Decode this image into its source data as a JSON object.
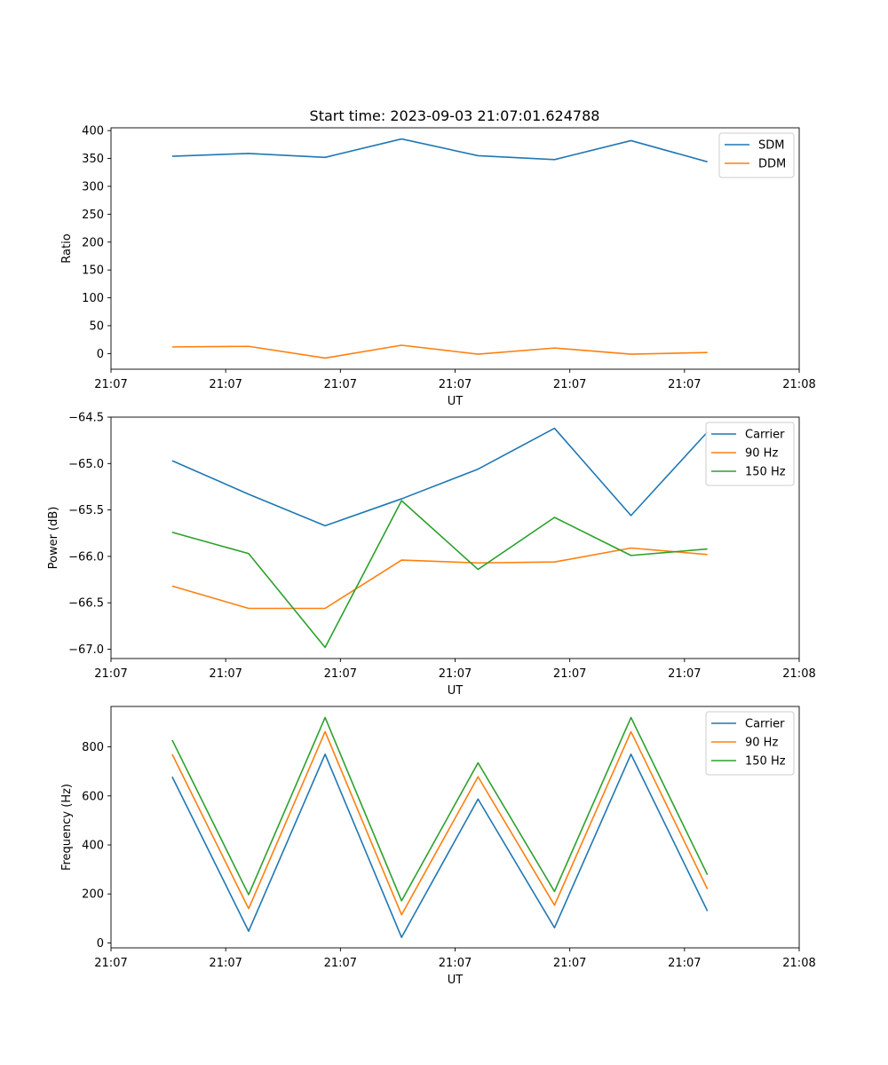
{
  "colors": {
    "blue": "#1f77b4",
    "orange": "#ff7f0e",
    "green": "#2ca02c"
  },
  "chart_data": [
    {
      "type": "line",
      "title": "Start time: 2023-09-03 21:07:01.624788",
      "xlabel": "UT",
      "ylabel": "Ratio",
      "x": [
        1,
        2,
        3,
        4,
        5,
        6,
        7,
        8
      ],
      "xlim": [
        0.2,
        9.2
      ],
      "xticks": [
        0.2,
        1.7,
        3.2,
        4.7,
        6.2,
        7.7,
        9.2
      ],
      "xtick_labels": [
        "21:07",
        "21:07",
        "21:07",
        "21:07",
        "21:07",
        "21:07",
        "21:08"
      ],
      "ylim": [
        -28,
        405
      ],
      "yticks": [
        0,
        50,
        100,
        150,
        200,
        250,
        300,
        350,
        400
      ],
      "legend": "top-right",
      "series": [
        {
          "name": "SDM",
          "color": "#1f77b4",
          "values": [
            354,
            359,
            352,
            385,
            355,
            348,
            382,
            344
          ]
        },
        {
          "name": "DDM",
          "color": "#ff7f0e",
          "values": [
            12,
            13,
            -8,
            15,
            -1,
            10,
            -1,
            2
          ]
        }
      ]
    },
    {
      "type": "line",
      "title": "",
      "xlabel": "UT",
      "ylabel": "Power (dB)",
      "x": [
        1,
        2,
        3,
        4,
        5,
        6,
        7,
        8
      ],
      "xlim": [
        0.2,
        9.2
      ],
      "xticks": [
        0.2,
        1.7,
        3.2,
        4.7,
        6.2,
        7.7,
        9.2
      ],
      "xtick_labels": [
        "21:07",
        "21:07",
        "21:07",
        "21:07",
        "21:07",
        "21:07",
        "21:08"
      ],
      "ylim": [
        -67.1,
        -64.5
      ],
      "yticks": [
        -67.0,
        -66.5,
        -66.0,
        -65.5,
        -65.0,
        -64.5
      ],
      "ytick_labels": [
        "−67.0",
        "−66.5",
        "−66.0",
        "−65.5",
        "−65.0",
        "−64.5"
      ],
      "legend": "top-right",
      "series": [
        {
          "name": "Carrier",
          "color": "#1f77b4",
          "values": [
            -64.97,
            -65.33,
            -65.67,
            -65.38,
            -65.06,
            -64.62,
            -65.56,
            -64.66
          ]
        },
        {
          "name": "90 Hz",
          "color": "#ff7f0e",
          "values": [
            -66.32,
            -66.56,
            -66.56,
            -66.04,
            -66.07,
            -66.06,
            -65.91,
            -65.98
          ]
        },
        {
          "name": "150 Hz",
          "color": "#2ca02c",
          "values": [
            -65.74,
            -65.97,
            -66.98,
            -65.4,
            -66.14,
            -65.58,
            -65.99,
            -65.92
          ]
        }
      ]
    },
    {
      "type": "line",
      "title": "",
      "xlabel": "UT",
      "ylabel": "Frequency (Hz)",
      "x": [
        1,
        2,
        3,
        4,
        5,
        6,
        7,
        8
      ],
      "xlim": [
        0.2,
        9.2
      ],
      "xticks": [
        0.2,
        1.7,
        3.2,
        4.7,
        6.2,
        7.7,
        9.2
      ],
      "xtick_labels": [
        "21:07",
        "21:07",
        "21:07",
        "21:07",
        "21:07",
        "21:07",
        "21:08"
      ],
      "ylim": [
        -20,
        965
      ],
      "yticks": [
        0,
        200,
        400,
        600,
        800
      ],
      "legend": "top-right",
      "series": [
        {
          "name": "Carrier",
          "color": "#1f77b4",
          "values": [
            678,
            48,
            770,
            23,
            587,
            62,
            770,
            130
          ]
        },
        {
          "name": "90 Hz",
          "color": "#ff7f0e",
          "values": [
            770,
            140,
            862,
            115,
            678,
            154,
            862,
            220
          ]
        },
        {
          "name": "150 Hz",
          "color": "#2ca02c",
          "values": [
            828,
            197,
            920,
            172,
            735,
            210,
            920,
            278
          ]
        }
      ]
    }
  ]
}
